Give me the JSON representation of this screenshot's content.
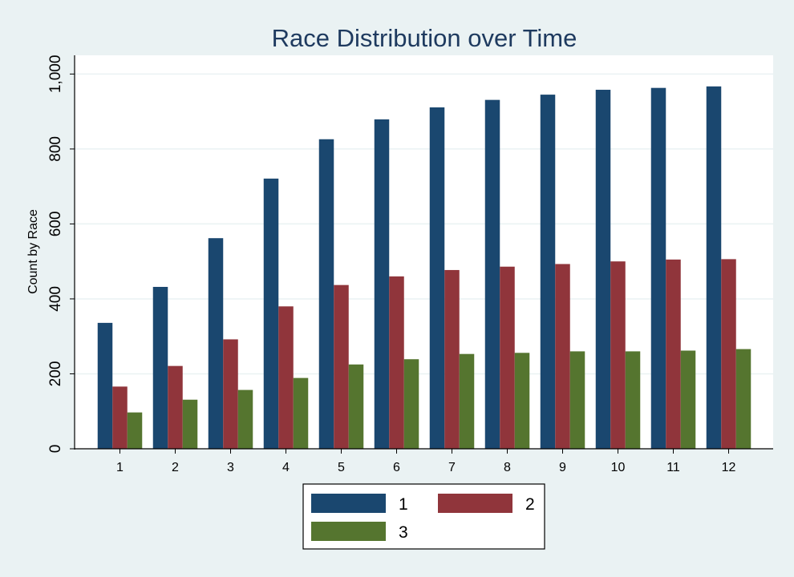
{
  "chart_data": {
    "type": "bar",
    "title": "Race Distribution over Time",
    "xlabel": "",
    "ylabel": "Count by Race",
    "categories": [
      "1",
      "2",
      "3",
      "4",
      "5",
      "6",
      "7",
      "8",
      "9",
      "10",
      "11",
      "12"
    ],
    "series": [
      {
        "name": "1",
        "color": "#1a476f",
        "values": [
          336,
          432,
          562,
          721,
          826,
          879,
          911,
          931,
          945,
          958,
          963,
          967
        ]
      },
      {
        "name": "2",
        "color": "#90353b",
        "values": [
          166,
          221,
          292,
          380,
          437,
          460,
          477,
          486,
          493,
          500,
          505,
          506
        ]
      },
      {
        "name": "3",
        "color": "#55752f",
        "values": [
          97,
          131,
          157,
          189,
          225,
          239,
          253,
          256,
          260,
          260,
          262,
          266
        ]
      }
    ],
    "ylim": [
      0,
      1050
    ],
    "yticks": [
      0,
      200,
      400,
      600,
      800,
      1000
    ],
    "ytick_labels": [
      "0",
      "200",
      "400",
      "600",
      "800",
      "1,000"
    ],
    "grid": true,
    "legend_position": "bottom"
  }
}
